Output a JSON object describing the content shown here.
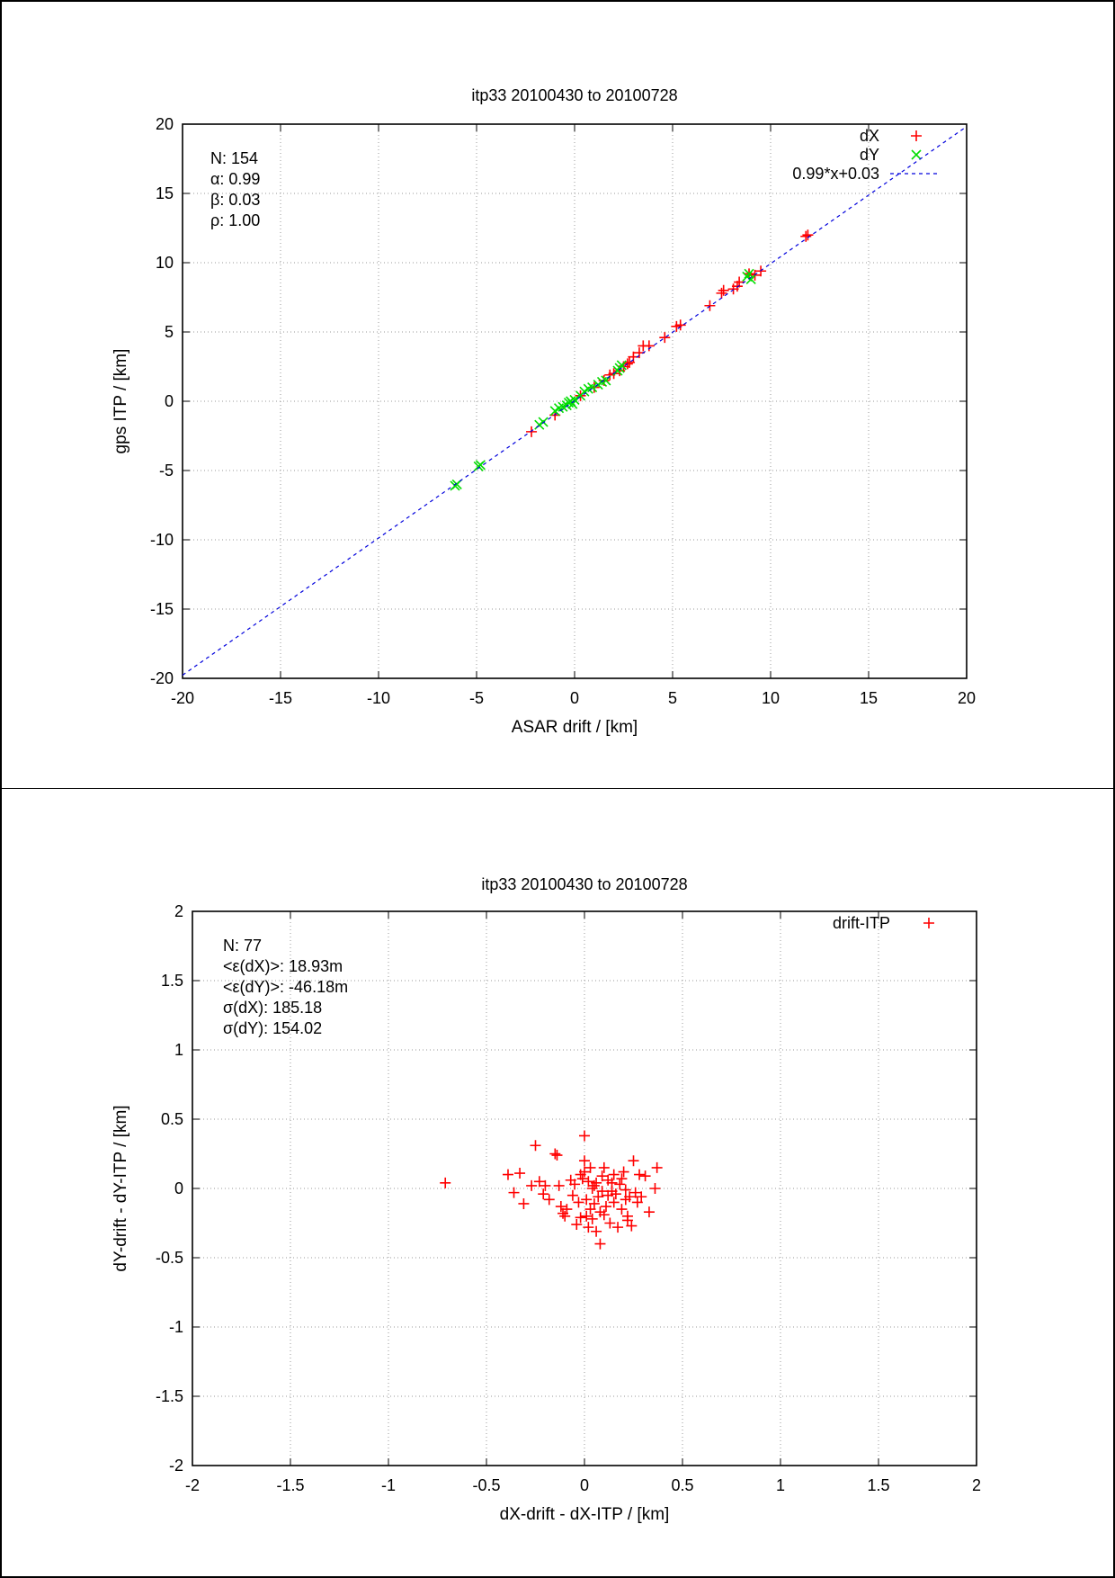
{
  "chart_data": [
    {
      "type": "scatter",
      "title": "itp33 20100430 to 20100728",
      "xlabel": "ASAR drift / [km]",
      "ylabel": "gps ITP / [km]",
      "xlim": [
        -20,
        20
      ],
      "ylim": [
        -20,
        20
      ],
      "xticks": [
        -20,
        -15,
        -10,
        -5,
        0,
        5,
        10,
        15,
        20
      ],
      "yticks": [
        -20,
        -15,
        -10,
        -5,
        0,
        5,
        10,
        15,
        20
      ],
      "grid": true,
      "legend_position": "top-right",
      "stats": [
        "N: 154",
        "α: 0.99",
        "β: 0.03",
        "ρ: 1.00"
      ],
      "series": [
        {
          "name": "dX",
          "marker": "plus",
          "color": "#ff0000",
          "points": [
            [
              -2.2,
              -2.2
            ],
            [
              -1.0,
              -1.0
            ],
            [
              0.3,
              0.4
            ],
            [
              1.0,
              1.0
            ],
            [
              1.5,
              1.5
            ],
            [
              1.8,
              1.9
            ],
            [
              2.0,
              2.0
            ],
            [
              2.3,
              2.2
            ],
            [
              2.5,
              2.5
            ],
            [
              2.7,
              2.7
            ],
            [
              2.8,
              2.8
            ],
            [
              3.0,
              3.2
            ],
            [
              3.3,
              3.5
            ],
            [
              3.5,
              4.0
            ],
            [
              3.8,
              4.0
            ],
            [
              4.6,
              4.6
            ],
            [
              5.2,
              5.4
            ],
            [
              5.4,
              5.5
            ],
            [
              6.9,
              6.9
            ],
            [
              7.5,
              7.8
            ],
            [
              7.6,
              8.0
            ],
            [
              8.1,
              8.1
            ],
            [
              8.3,
              8.3
            ],
            [
              8.4,
              8.6
            ],
            [
              8.9,
              9.2
            ],
            [
              9.2,
              9.1
            ],
            [
              9.5,
              9.4
            ],
            [
              11.8,
              11.9
            ],
            [
              11.9,
              12.0
            ]
          ]
        },
        {
          "name": "dY",
          "marker": "cross",
          "color": "#00dd00",
          "points": [
            [
              -6.1,
              -6.1
            ],
            [
              -6.0,
              -6.0
            ],
            [
              -4.9,
              -4.7
            ],
            [
              -4.8,
              -4.6
            ],
            [
              -1.8,
              -1.7
            ],
            [
              -1.6,
              -1.5
            ],
            [
              -1.0,
              -0.7
            ],
            [
              -0.8,
              -0.5
            ],
            [
              -0.6,
              -0.4
            ],
            [
              -0.4,
              -0.3
            ],
            [
              -0.3,
              -0.1
            ],
            [
              -0.2,
              0.0
            ],
            [
              -0.1,
              -0.2
            ],
            [
              0.0,
              0.1
            ],
            [
              0.3,
              0.4
            ],
            [
              0.5,
              0.7
            ],
            [
              0.7,
              0.9
            ],
            [
              0.9,
              1.0
            ],
            [
              1.2,
              1.2
            ],
            [
              1.4,
              1.4
            ],
            [
              1.6,
              1.5
            ],
            [
              2.2,
              2.2
            ],
            [
              2.3,
              2.4
            ],
            [
              2.4,
              2.6
            ],
            [
              8.8,
              9.0
            ],
            [
              8.9,
              9.2
            ],
            [
              9.0,
              8.8
            ]
          ]
        },
        {
          "name": "0.99*x+0.03",
          "type": "line",
          "style": "dashed",
          "color": "#0000dd",
          "slope": 0.99,
          "intercept": 0.03
        }
      ]
    },
    {
      "type": "scatter",
      "title": "itp33 20100430 to 20100728",
      "xlabel": "dX-drift - dX-ITP / [km]",
      "ylabel": "dY-drift - dY-ITP / [km]",
      "xlim": [
        -2,
        2
      ],
      "ylim": [
        -2,
        2
      ],
      "xticks": [
        -2,
        -1.5,
        -1,
        -0.5,
        0,
        0.5,
        1,
        1.5,
        2
      ],
      "yticks": [
        -2,
        -1.5,
        -1,
        -0.5,
        0,
        0.5,
        1,
        1.5,
        2
      ],
      "grid": true,
      "legend_position": "top-right",
      "stats": [
        "N: 77",
        "<ε(dX)>:  18.93m",
        "<ε(dY)>: -46.18m",
        "σ(dX):  185.18",
        "σ(dY):  154.02"
      ],
      "series": [
        {
          "name": "drift-ITP",
          "marker": "plus",
          "color": "#ff0000",
          "points": [
            [
              -0.71,
              0.04
            ],
            [
              -0.39,
              0.1
            ],
            [
              -0.33,
              0.11
            ],
            [
              -0.36,
              -0.03
            ],
            [
              -0.31,
              -0.11
            ],
            [
              -0.25,
              0.31
            ],
            [
              -0.23,
              0.05
            ],
            [
              -0.21,
              -0.04
            ],
            [
              -0.2,
              0.02
            ],
            [
              -0.18,
              -0.08
            ],
            [
              -0.15,
              0.25
            ],
            [
              -0.14,
              0.24
            ],
            [
              -0.13,
              0.02
            ],
            [
              -0.12,
              -0.13
            ],
            [
              -0.11,
              -0.18
            ],
            [
              -0.1,
              -0.2
            ],
            [
              -0.07,
              0.06
            ],
            [
              -0.06,
              -0.05
            ],
            [
              -0.05,
              0.03
            ],
            [
              -0.04,
              -0.26
            ],
            [
              -0.03,
              -0.1
            ],
            [
              -0.02,
              -0.21
            ],
            [
              -0.02,
              0.1
            ],
            [
              -0.01,
              0.07
            ],
            [
              0.0,
              0.38
            ],
            [
              0.0,
              0.2
            ],
            [
              0.0,
              0.12
            ],
            [
              0.01,
              -0.08
            ],
            [
              0.01,
              -0.2
            ],
            [
              0.02,
              0.05
            ],
            [
              0.02,
              -0.28
            ],
            [
              0.03,
              0.15
            ],
            [
              0.03,
              -0.15
            ],
            [
              0.04,
              0.0
            ],
            [
              0.04,
              -0.22
            ],
            [
              0.05,
              -0.11
            ],
            [
              0.06,
              0.04
            ],
            [
              0.06,
              -0.31
            ],
            [
              0.07,
              -0.06
            ],
            [
              0.08,
              -0.4
            ],
            [
              0.08,
              -0.17
            ],
            [
              0.09,
              0.09
            ],
            [
              0.09,
              -0.02
            ],
            [
              0.1,
              0.15
            ],
            [
              0.1,
              -0.19
            ],
            [
              0.11,
              -0.13
            ],
            [
              0.12,
              0.06
            ],
            [
              0.12,
              -0.05
            ],
            [
              0.13,
              -0.25
            ],
            [
              0.14,
              -0.02
            ],
            [
              0.15,
              0.1
            ],
            [
              0.15,
              -0.1
            ],
            [
              0.16,
              -0.04
            ],
            [
              0.17,
              -0.28
            ],
            [
              0.18,
              0.03
            ],
            [
              0.19,
              0.07
            ],
            [
              0.19,
              -0.15
            ],
            [
              0.2,
              0.12
            ],
            [
              0.21,
              -0.01
            ],
            [
              0.21,
              -0.08
            ],
            [
              0.22,
              -0.2
            ],
            [
              0.22,
              -0.23
            ],
            [
              0.23,
              -0.06
            ],
            [
              0.24,
              -0.27
            ],
            [
              0.25,
              0.2
            ],
            [
              0.26,
              -0.03
            ],
            [
              0.28,
              0.1
            ],
            [
              0.29,
              -0.06
            ],
            [
              0.31,
              0.09
            ],
            [
              0.33,
              -0.17
            ],
            [
              0.36,
              0.0
            ],
            [
              0.37,
              0.15
            ],
            [
              -0.09,
              -0.15
            ],
            [
              0.05,
              0.02
            ],
            [
              0.27,
              -0.1
            ],
            [
              -0.27,
              0.02
            ],
            [
              0.14,
              0.04
            ]
          ]
        }
      ]
    }
  ]
}
